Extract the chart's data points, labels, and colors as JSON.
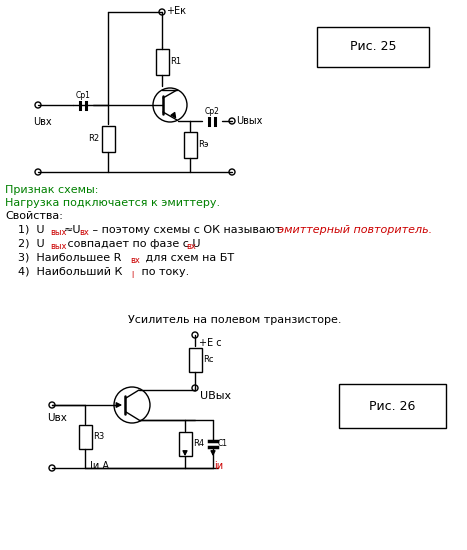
{
  "bg_color": "#ffffff",
  "fig_width": 4.67,
  "fig_height": 5.5,
  "dpi": 100,
  "black": "#000000",
  "green": "#008000",
  "red": "#cc0000",
  "pic25": "Рис. 25",
  "pic26": "Рис. 26",
  "ek": "+Ек",
  "ec": "+Е с",
  "uvx": "Uвх",
  "uvyx_top": "Uвых",
  "uvyx_bot": "UВых",
  "r1": "R1",
  "r2": "R2",
  "re": "Rэ",
  "cp1": "Ср1",
  "cp2": "Ср2",
  "rc": "Rc",
  "r3": "R3",
  "r4": "R4",
  "c1": "С1",
  "iin_a": "Iи А",
  "iin": "iи",
  "title26": "Усилитель на полевом транзисторе.",
  "t_priznak": "Признак схемы:",
  "t_nagruzka": "Нагрузка подключается к эмиттеру.",
  "t_svoistva": "Свойства:"
}
